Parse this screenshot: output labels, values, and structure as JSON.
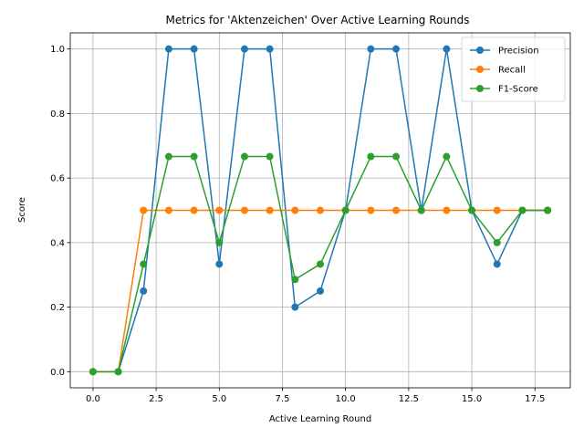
{
  "chart_data": {
    "type": "line",
    "title": "Metrics for 'Aktenzeichen' Over Active Learning Rounds",
    "xlabel": "Active Learning Round",
    "ylabel": "Score",
    "x": [
      0,
      1,
      2,
      3,
      4,
      5,
      6,
      7,
      8,
      9,
      10,
      11,
      12,
      13,
      14,
      15,
      16,
      17,
      18
    ],
    "xlim": [
      -0.9,
      18.9
    ],
    "ylim": [
      -0.05,
      1.05
    ],
    "xticks": [
      0.0,
      2.5,
      5.0,
      7.5,
      10.0,
      12.5,
      15.0,
      17.5
    ],
    "xtick_labels": [
      "0.0",
      "2.5",
      "5.0",
      "7.5",
      "10.0",
      "12.5",
      "15.0",
      "17.5"
    ],
    "yticks": [
      0.0,
      0.2,
      0.4,
      0.6,
      0.8,
      1.0
    ],
    "ytick_labels": [
      "0.0",
      "0.2",
      "0.4",
      "0.6",
      "0.8",
      "1.0"
    ],
    "grid": true,
    "legend_position": "top-right",
    "series": [
      {
        "name": "Precision",
        "color": "#1f77b4",
        "values": [
          0,
          0,
          0.25,
          1.0,
          1.0,
          0.3333,
          1.0,
          1.0,
          0.2,
          0.25,
          0.5,
          1.0,
          1.0,
          0.5,
          1.0,
          0.5,
          0.3333,
          0.5,
          0.5
        ]
      },
      {
        "name": "Recall",
        "color": "#ff7f0e",
        "values": [
          0,
          0,
          0.5,
          0.5,
          0.5,
          0.5,
          0.5,
          0.5,
          0.5,
          0.5,
          0.5,
          0.5,
          0.5,
          0.5,
          0.5,
          0.5,
          0.5,
          0.5,
          0.5
        ]
      },
      {
        "name": "F1-Score",
        "color": "#2ca02c",
        "values": [
          0,
          0,
          0.3333,
          0.6667,
          0.6667,
          0.4,
          0.6667,
          0.6667,
          0.2857,
          0.3333,
          0.5,
          0.6667,
          0.6667,
          0.5,
          0.6667,
          0.5,
          0.4,
          0.5,
          0.5
        ]
      }
    ]
  }
}
